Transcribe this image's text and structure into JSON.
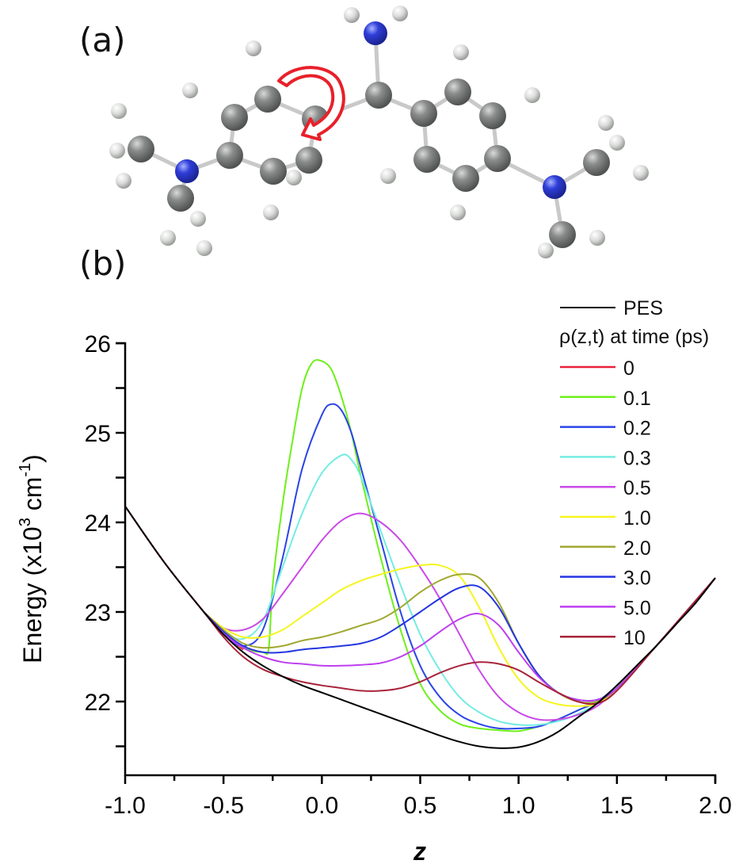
{
  "panels": {
    "a": {
      "label": "(a)",
      "description": "Ball-and-stick molecular structure with two dimethylamino-phenyl rings bridged by a central carbon bearing an NH2 group; red curved arrow indicates torsional rotation"
    },
    "b": {
      "label": "(b)"
    }
  },
  "molecule": {
    "arrow_color": "#e8202a",
    "carbon_color": "#7d7f7e",
    "nitrogen_color": "#2f3ed8",
    "hydrogen_color": "#e4e6e4"
  },
  "chart_data": {
    "type": "line",
    "title": "",
    "xlabel": "z",
    "ylabel": "Energy (x10³ cm⁻¹)",
    "ylabel_parts": {
      "main": "Energy (x10",
      "sup1": "3",
      "mid": " cm",
      "sup2": "-1",
      "end": ")"
    },
    "xlim": [
      -1.0,
      2.0
    ],
    "ylim": [
      21.18,
      26.0
    ],
    "xticks": [
      "-1.0",
      "-0.5",
      "0.0",
      "0.5",
      "1.0",
      "1.5",
      "2.0"
    ],
    "yticks": [
      "22",
      "23",
      "24",
      "25",
      "26"
    ],
    "grid": false,
    "legend_position": "upper right",
    "legend_header": "ρ(z,t) at time (ps)",
    "series": [
      {
        "name": "PES",
        "color": "#000000",
        "x": [
          -1.0,
          -0.8,
          -0.6,
          -0.5,
          -0.4,
          -0.3,
          -0.2,
          -0.1,
          0.0,
          0.1,
          0.2,
          0.3,
          0.4,
          0.5,
          0.6,
          0.7,
          0.8,
          0.9,
          1.0,
          1.1,
          1.2,
          1.3,
          1.4,
          1.5,
          1.6,
          1.7,
          1.8,
          1.9,
          2.0
        ],
        "y": [
          24.18,
          23.55,
          23.0,
          22.75,
          22.55,
          22.4,
          22.28,
          22.18,
          22.1,
          22.02,
          21.94,
          21.86,
          21.78,
          21.7,
          21.62,
          21.55,
          21.5,
          21.48,
          21.49,
          21.55,
          21.66,
          21.82,
          21.98,
          22.18,
          22.4,
          22.62,
          22.86,
          23.1,
          23.38
        ]
      },
      {
        "name": "0",
        "color": "#e8213a",
        "x": [
          -1.0,
          -0.8,
          -0.6,
          -0.5,
          -0.4
        ],
        "y": [
          24.18,
          23.55,
          23.0,
          22.75,
          22.58
        ]
      },
      {
        "name": "0.1",
        "color": "#6ef01a",
        "x": [
          -0.6,
          -0.5,
          -0.4,
          -0.3,
          -0.27,
          -0.25,
          -0.2,
          -0.15,
          -0.1,
          -0.05,
          0.0,
          0.05,
          0.1,
          0.15,
          0.2,
          0.3,
          0.4,
          0.5,
          0.6,
          0.7,
          0.8,
          0.9,
          1.0,
          1.1,
          1.2,
          1.3,
          1.4,
          1.5,
          1.7,
          2.0
        ],
        "y": [
          23.0,
          22.75,
          22.6,
          22.55,
          22.6,
          23.3,
          24.2,
          24.9,
          25.5,
          25.78,
          25.8,
          25.7,
          25.4,
          25.0,
          24.5,
          23.6,
          22.8,
          22.2,
          21.9,
          21.75,
          21.7,
          21.68,
          21.67,
          21.72,
          21.8,
          21.9,
          22.0,
          22.18,
          22.62,
          23.38
        ]
      },
      {
        "name": "0.2",
        "color": "#2a45e6",
        "x": [
          -0.6,
          -0.5,
          -0.4,
          -0.3,
          -0.2,
          -0.1,
          0.0,
          0.05,
          0.1,
          0.15,
          0.2,
          0.3,
          0.4,
          0.5,
          0.6,
          0.7,
          0.8,
          0.9,
          1.0,
          1.1,
          1.2,
          1.3,
          1.4,
          1.5,
          1.7,
          2.0
        ],
        "y": [
          23.0,
          22.75,
          22.62,
          22.8,
          23.6,
          24.6,
          25.2,
          25.32,
          25.25,
          25.0,
          24.6,
          23.8,
          23.0,
          22.4,
          22.05,
          21.85,
          21.75,
          21.7,
          21.7,
          21.72,
          21.8,
          21.9,
          22.0,
          22.18,
          22.62,
          23.38
        ]
      },
      {
        "name": "0.3",
        "color": "#74ece2",
        "x": [
          -0.6,
          -0.5,
          -0.4,
          -0.3,
          -0.2,
          -0.1,
          0.0,
          0.1,
          0.15,
          0.2,
          0.3,
          0.4,
          0.5,
          0.6,
          0.7,
          0.8,
          0.9,
          1.0,
          1.1,
          1.2,
          1.3,
          1.4,
          1.5,
          1.7,
          2.0
        ],
        "y": [
          23.0,
          22.78,
          22.7,
          22.9,
          23.5,
          24.1,
          24.55,
          24.75,
          24.7,
          24.5,
          23.9,
          23.3,
          22.75,
          22.35,
          22.05,
          21.88,
          21.78,
          21.74,
          21.74,
          21.78,
          21.86,
          21.98,
          22.18,
          22.62,
          23.38
        ]
      },
      {
        "name": "0.5",
        "color": "#c94ae6",
        "x": [
          -0.6,
          -0.5,
          -0.4,
          -0.3,
          -0.2,
          -0.1,
          0.0,
          0.1,
          0.2,
          0.3,
          0.4,
          0.5,
          0.6,
          0.7,
          0.8,
          0.9,
          1.0,
          1.1,
          1.2,
          1.3,
          1.4,
          1.5,
          1.7,
          2.0
        ],
        "y": [
          23.0,
          22.82,
          22.8,
          22.92,
          23.2,
          23.5,
          23.8,
          24.02,
          24.1,
          24.0,
          23.8,
          23.5,
          23.15,
          22.75,
          22.35,
          22.05,
          21.88,
          21.8,
          21.8,
          21.85,
          21.95,
          22.15,
          22.62,
          23.38
        ]
      },
      {
        "name": "1.0",
        "color": "#f5f51e",
        "x": [
          -0.6,
          -0.5,
          -0.4,
          -0.3,
          -0.2,
          -0.1,
          0.0,
          0.1,
          0.2,
          0.3,
          0.4,
          0.5,
          0.6,
          0.7,
          0.8,
          0.9,
          1.0,
          1.1,
          1.2,
          1.3,
          1.4,
          1.5,
          1.7,
          2.0
        ],
        "y": [
          23.0,
          22.82,
          22.72,
          22.72,
          22.8,
          22.95,
          23.1,
          23.25,
          23.35,
          23.42,
          23.48,
          23.52,
          23.52,
          23.4,
          23.05,
          22.6,
          22.25,
          22.05,
          21.97,
          21.95,
          21.98,
          22.15,
          22.62,
          23.38
        ]
      },
      {
        "name": "2.0",
        "color": "#a0a830",
        "x": [
          -0.6,
          -0.5,
          -0.4,
          -0.3,
          -0.2,
          -0.1,
          0.0,
          0.1,
          0.2,
          0.3,
          0.4,
          0.5,
          0.6,
          0.7,
          0.8,
          0.9,
          1.0,
          1.1,
          1.2,
          1.3,
          1.4,
          1.5,
          1.7,
          2.0
        ],
        "y": [
          23.0,
          22.8,
          22.65,
          22.6,
          22.62,
          22.68,
          22.72,
          22.78,
          22.85,
          22.92,
          23.05,
          23.22,
          23.35,
          23.42,
          23.38,
          23.1,
          22.65,
          22.3,
          22.1,
          22.0,
          22.0,
          22.15,
          22.62,
          23.38
        ]
      },
      {
        "name": "3.0",
        "color": "#2436e0",
        "x": [
          -0.6,
          -0.5,
          -0.4,
          -0.3,
          -0.2,
          -0.1,
          0.0,
          0.1,
          0.2,
          0.3,
          0.4,
          0.5,
          0.6,
          0.7,
          0.8,
          0.9,
          1.0,
          1.1,
          1.2,
          1.3,
          1.4,
          1.5,
          1.7,
          2.0
        ],
        "y": [
          23.0,
          22.78,
          22.62,
          22.55,
          22.55,
          22.58,
          22.6,
          22.62,
          22.65,
          22.72,
          22.85,
          23.0,
          23.15,
          23.27,
          23.28,
          23.05,
          22.65,
          22.3,
          22.1,
          22.02,
          22.02,
          22.15,
          22.62,
          23.38
        ]
      },
      {
        "name": "5.0",
        "color": "#bd3ff0",
        "x": [
          -0.6,
          -0.5,
          -0.4,
          -0.3,
          -0.2,
          -0.1,
          0.0,
          0.1,
          0.2,
          0.3,
          0.4,
          0.5,
          0.6,
          0.7,
          0.8,
          0.9,
          1.0,
          1.1,
          1.2,
          1.3,
          1.4,
          1.5,
          1.7,
          2.0
        ],
        "y": [
          23.0,
          22.76,
          22.6,
          22.5,
          22.44,
          22.42,
          22.4,
          22.4,
          22.41,
          22.43,
          22.5,
          22.62,
          22.78,
          22.92,
          22.98,
          22.85,
          22.55,
          22.28,
          22.1,
          22.02,
          22.02,
          22.15,
          22.62,
          23.38
        ]
      },
      {
        "name": "10",
        "color": "#a8243a",
        "x": [
          -1.0,
          -0.8,
          -0.6,
          -0.5,
          -0.4,
          -0.3,
          -0.2,
          -0.1,
          0.0,
          0.1,
          0.2,
          0.3,
          0.4,
          0.5,
          0.6,
          0.7,
          0.8,
          0.9,
          1.0,
          1.1,
          1.2,
          1.3,
          1.4,
          1.5,
          1.7,
          2.0
        ],
        "y": [
          24.18,
          23.55,
          23.0,
          22.72,
          22.5,
          22.36,
          22.28,
          22.22,
          22.18,
          22.15,
          22.12,
          22.12,
          22.15,
          22.22,
          22.32,
          22.4,
          22.44,
          22.42,
          22.35,
          22.22,
          22.1,
          22.0,
          21.98,
          22.12,
          22.62,
          23.38
        ]
      }
    ]
  }
}
